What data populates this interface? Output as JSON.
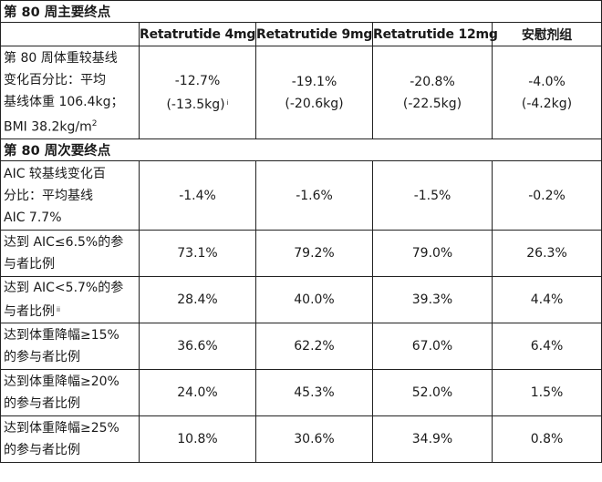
{
  "sections": {
    "primary": "第 80 周主要终点",
    "secondary": "第 80 周次要终点"
  },
  "headers": [
    "Retatrutide 4mg",
    "Retatrutide 9mg",
    "Retatrutide 12mg",
    "安慰剂组"
  ],
  "primary_row": {
    "label_lines": [
      "第 80 周体重较基线",
      "变化百分比：平均",
      "基线体重 106.4kg；",
      "BMI 38.2kg/m"
    ],
    "label_sup": "2",
    "values": [
      {
        "pct": "-12.7%",
        "kg": "(-13.5kg)",
        "note": "i"
      },
      {
        "pct": "-19.1%",
        "kg": "(-20.6kg)",
        "note": ""
      },
      {
        "pct": "-20.8%",
        "kg": "(-22.5kg)",
        "note": ""
      },
      {
        "pct": "-4.0%",
        "kg": "(-4.2kg)",
        "note": ""
      }
    ]
  },
  "secondary_rows": [
    {
      "label_lines": [
        "AIC 较基线变化百",
        "分比：平均基线",
        "AIC 7.7%"
      ],
      "note": "",
      "values": [
        "-1.4%",
        "-1.6%",
        "-1.5%",
        "-0.2%"
      ]
    },
    {
      "label_lines": [
        "达到 AIC≤6.5%的参",
        "与者比例"
      ],
      "note": "",
      "values": [
        "73.1%",
        "79.2%",
        "79.0%",
        "26.3%"
      ]
    },
    {
      "label_lines": [
        "达到 AIC<5.7%的参",
        "与者比例"
      ],
      "note": "ii",
      "values": [
        "28.4%",
        "40.0%",
        "39.3%",
        "4.4%"
      ]
    },
    {
      "label_lines": [
        "达到体重降幅≥15%",
        "的参与者比例"
      ],
      "note": "",
      "values": [
        "36.6%",
        "62.2%",
        "67.0%",
        "6.4%"
      ]
    },
    {
      "label_lines": [
        "达到体重降幅≥20%",
        "的参与者比例"
      ],
      "note": "",
      "values": [
        "24.0%",
        "45.3%",
        "52.0%",
        "1.5%"
      ]
    },
    {
      "label_lines": [
        "达到体重降幅≥25%",
        "的参与者比例"
      ],
      "note": "",
      "values": [
        "10.8%",
        "30.6%",
        "34.9%",
        "0.8%"
      ]
    }
  ]
}
